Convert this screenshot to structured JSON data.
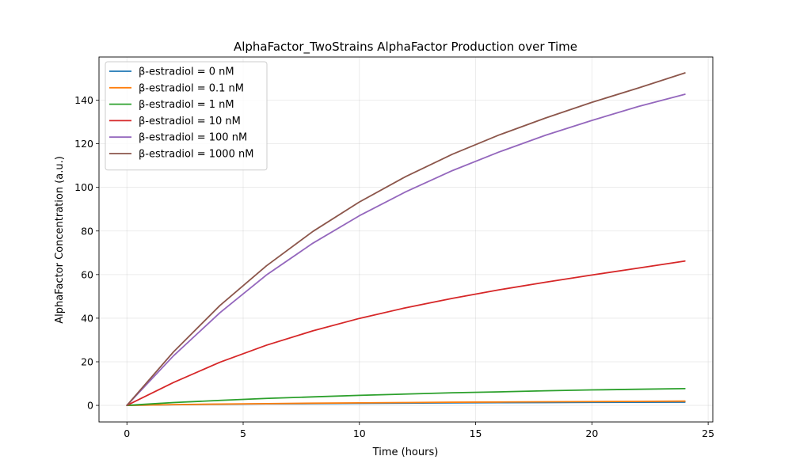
{
  "chart_data": {
    "type": "line",
    "title": "AlphaFactor_TwoStrains AlphaFactor Production over Time",
    "xlabel": "Time (hours)",
    "ylabel": "AlphaFactor Concentration (a.u.)",
    "xlim": [
      -1.2,
      25.2
    ],
    "ylim": [
      -7.6,
      159.8
    ],
    "xticks": [
      0,
      5,
      10,
      15,
      20,
      25
    ],
    "yticks": [
      0,
      20,
      40,
      60,
      80,
      100,
      120,
      140
    ],
    "grid": true,
    "legend_position": "top-left",
    "x": [
      0,
      2,
      4,
      6,
      8,
      10,
      12,
      14,
      16,
      18,
      20,
      22,
      24
    ],
    "series": [
      {
        "name": "β-estradiol = 0 nM",
        "color": "#1f77b4",
        "values": [
          0,
          0.3,
          0.5,
          0.7,
          0.8,
          0.95,
          1.05,
          1.15,
          1.25,
          1.3,
          1.4,
          1.45,
          1.5
        ]
      },
      {
        "name": "β-estradiol = 0.1 nM",
        "color": "#ff7f0e",
        "values": [
          0,
          0.35,
          0.6,
          0.8,
          1.0,
          1.15,
          1.3,
          1.45,
          1.55,
          1.65,
          1.75,
          1.85,
          1.95
        ]
      },
      {
        "name": "β-estradiol = 1 nM",
        "color": "#2ca02c",
        "values": [
          0,
          1.3,
          2.3,
          3.2,
          3.9,
          4.6,
          5.2,
          5.8,
          6.2,
          6.7,
          7.1,
          7.4,
          7.7
        ]
      },
      {
        "name": "β-estradiol = 10 nM",
        "color": "#d62728",
        "values": [
          0,
          10.5,
          19.8,
          27.6,
          34.2,
          39.9,
          44.8,
          49.1,
          53.0,
          56.5,
          59.8,
          63.0,
          66.2
        ]
      },
      {
        "name": "β-estradiol = 100 nM",
        "color": "#9467bd",
        "values": [
          0,
          22.7,
          42.5,
          59.8,
          74.4,
          87.0,
          98.0,
          107.7,
          116.2,
          123.9,
          130.7,
          137.1,
          142.7
        ]
      },
      {
        "name": "β-estradiol = 1000 nM",
        "color": "#8c564b",
        "values": [
          0,
          24.5,
          45.8,
          64.0,
          79.8,
          93.3,
          105.0,
          115.2,
          124.0,
          131.8,
          139.0,
          145.6,
          152.5
        ]
      }
    ]
  }
}
